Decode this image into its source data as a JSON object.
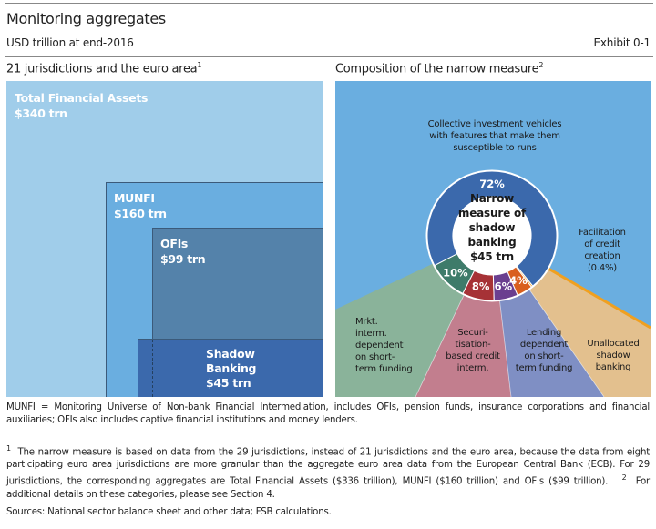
{
  "header": {
    "title": "Monitoring aggregates",
    "subtitle": "USD trillion at end-2016",
    "exhibit": "Exhibit 0-1"
  },
  "left_panel": {
    "title": "21 jurisdictions and the euro area",
    "footnote_ref": "1",
    "boxes": [
      {
        "name": "Total Financial Assets",
        "value": "$340 trn"
      },
      {
        "name": "MUNFI",
        "value": "$160 trn"
      },
      {
        "name": "OFIs",
        "value": "$99 trn"
      },
      {
        "name": "Shadow Banking",
        "value": "$45 trn"
      }
    ]
  },
  "right_panel": {
    "title": "Composition of the narrow measure",
    "footnote_ref": "2",
    "center": {
      "line1": "Narrow",
      "line2": "measure of",
      "line3": "shadow",
      "line4": "banking",
      "value": "$45 trn"
    },
    "top_label": {
      "line1": "Collective investment vehicles",
      "line2": "with features that make them",
      "line3": "susceptible to runs"
    },
    "facilitation": {
      "line1": "Facilitation",
      "line2": "of credit",
      "line3": "creation",
      "line4": "(0.4%)"
    },
    "fan_labels": {
      "mkt": [
        "Mrkt.",
        "interm.",
        "dependent",
        "on short-",
        "term funding"
      ],
      "sec": [
        "Securi-",
        "tisation-",
        "based credit",
        "interm."
      ],
      "lend": [
        "Lending",
        "dependent",
        "on short-",
        "term funding"
      ],
      "unalloc": [
        "Unallocated",
        "shadow",
        "banking"
      ]
    }
  },
  "chart_data": {
    "type": "pie",
    "title": "Composition of the narrow measure",
    "total": "$45 trn",
    "slices": [
      {
        "name": "Collective investment vehicles",
        "value": 72,
        "label": "72%",
        "color": "#3b69ac"
      },
      {
        "name": "Facilitation of credit creation",
        "value": 0.4,
        "label": "",
        "color": "#f0a020"
      },
      {
        "name": "Lending dependent on short-term funding",
        "value": 4,
        "label": "4%",
        "color": "#d95f1e"
      },
      {
        "name": "Unallocated",
        "value": 6,
        "label": "6%",
        "color": "#6b3f8f"
      },
      {
        "name": "Securitisation-based credit interm.",
        "value": 8,
        "label": "8%",
        "color": "#a63236"
      },
      {
        "name": "Mrkt. interm. dependent on short-term funding",
        "value": 10,
        "label": "10%",
        "color": "#3e7b6a"
      }
    ]
  },
  "notes": {
    "munfi": "MUNFI = Monitoring Universe of Non-bank Financial Intermediation, includes OFIs, pension funds, insurance corporations and financial auxiliaries; OFIs also includes captive financial institutions and money lenders.",
    "fn1": "The narrow measure is based on data from the 29 jurisdictions, instead of 21 jurisdictions and the euro area, because the data from eight participating euro area jurisdictions are more granular than the aggregate euro area data from the European Central Bank (ECB). For 29 jurisdictions, the corresponding aggregates are Total Financial Assets ($336 trillion), MUNFI ($160 trillion) and OFIs ($99 trillion).",
    "fn2": "For additional details on these categories, please see Section 4.",
    "sources": "Sources: National sector balance sheet and other data; FSB calculations."
  }
}
